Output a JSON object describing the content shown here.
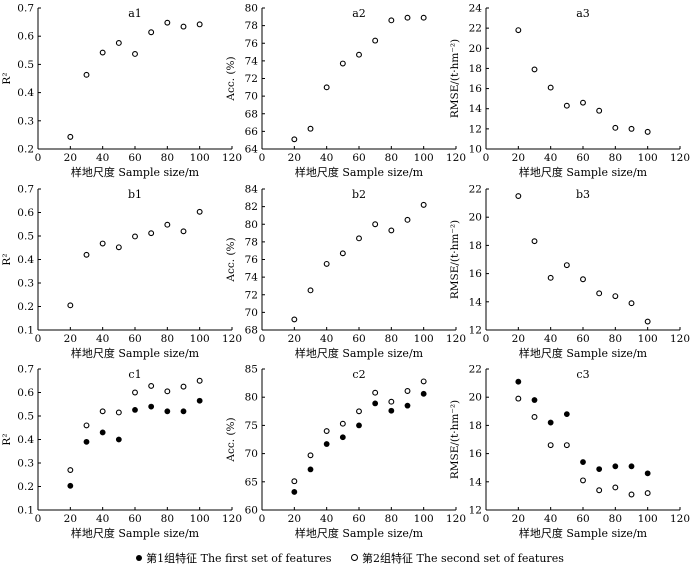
{
  "figure": {
    "legend": {
      "filled_label": "第1组特征 The first set of features",
      "open_label": "第2组特征 The second set of features"
    }
  },
  "chart_data": [
    {
      "id": "a1",
      "type": "scatter",
      "title": "a1",
      "xlabel": "样地尺度 Sample size/m",
      "ylabel": "R²",
      "xlim": [
        0,
        120
      ],
      "xticks": [
        0,
        20,
        40,
        60,
        80,
        100,
        120
      ],
      "ylim": [
        0.2,
        0.7
      ],
      "yticks": [
        0.2,
        0.3,
        0.4,
        0.5,
        0.6,
        0.7
      ],
      "x": [
        20,
        30,
        40,
        50,
        60,
        70,
        80,
        90,
        100
      ],
      "series": [
        {
          "name": "第2组特征 The second set of features",
          "marker": "open",
          "values": [
            0.243,
            0.463,
            0.542,
            0.576,
            0.537,
            0.614,
            0.648,
            0.634,
            0.642
          ]
        }
      ]
    },
    {
      "id": "a2",
      "type": "scatter",
      "title": "a2",
      "xlabel": "样地尺度 Sample size/m",
      "ylabel": "Acc. (%)",
      "xlim": [
        0,
        120
      ],
      "xticks": [
        0,
        20,
        40,
        60,
        80,
        100,
        120
      ],
      "ylim": [
        64,
        80
      ],
      "yticks": [
        64,
        66,
        68,
        70,
        72,
        74,
        76,
        78,
        80
      ],
      "x": [
        20,
        30,
        40,
        50,
        60,
        70,
        80,
        90,
        100
      ],
      "series": [
        {
          "name": "第2组特征 The second set of features",
          "marker": "open",
          "values": [
            65.1,
            66.3,
            71.0,
            73.7,
            74.7,
            76.3,
            78.6,
            78.9,
            78.9
          ]
        }
      ]
    },
    {
      "id": "a3",
      "type": "scatter",
      "title": "a3",
      "xlabel": "样地尺度 Sample size/m",
      "ylabel": "RMSE/(t·hm⁻²)",
      "xlim": [
        0,
        120
      ],
      "xticks": [
        0,
        20,
        40,
        60,
        80,
        100,
        120
      ],
      "ylim": [
        10,
        24
      ],
      "yticks": [
        10,
        12,
        14,
        16,
        18,
        20,
        22,
        24
      ],
      "x": [
        20,
        30,
        40,
        50,
        60,
        70,
        80,
        90,
        100
      ],
      "series": [
        {
          "name": "第2组特征 The second set of features",
          "marker": "open",
          "values": [
            21.8,
            17.9,
            16.1,
            14.3,
            14.6,
            13.8,
            12.1,
            12.0,
            11.7
          ]
        }
      ]
    },
    {
      "id": "b1",
      "type": "scatter",
      "title": "b1",
      "xlabel": "样地尺度 Sample size/m",
      "ylabel": "R²",
      "xlim": [
        0,
        120
      ],
      "xticks": [
        0,
        20,
        40,
        60,
        80,
        100,
        120
      ],
      "ylim": [
        0.1,
        0.7
      ],
      "yticks": [
        0.1,
        0.2,
        0.3,
        0.4,
        0.5,
        0.6,
        0.7
      ],
      "x": [
        20,
        30,
        40,
        50,
        60,
        70,
        80,
        90,
        100
      ],
      "series": [
        {
          "name": "第2组特征 The second set of features",
          "marker": "open",
          "values": [
            0.205,
            0.42,
            0.468,
            0.452,
            0.498,
            0.512,
            0.548,
            0.52,
            0.603
          ]
        }
      ]
    },
    {
      "id": "b2",
      "type": "scatter",
      "title": "b2",
      "xlabel": "样地尺度 Sample size/m",
      "ylabel": "Acc. (%)",
      "xlim": [
        0,
        120
      ],
      "xticks": [
        0,
        20,
        40,
        60,
        80,
        100,
        120
      ],
      "ylim": [
        68,
        84
      ],
      "yticks": [
        68,
        70,
        72,
        74,
        76,
        78,
        80,
        82,
        84
      ],
      "x": [
        20,
        30,
        40,
        50,
        60,
        70,
        80,
        90,
        100
      ],
      "series": [
        {
          "name": "第2组特征 The second set of features",
          "marker": "open",
          "values": [
            69.2,
            72.5,
            75.5,
            76.7,
            78.4,
            80.0,
            79.3,
            80.5,
            82.2
          ]
        }
      ]
    },
    {
      "id": "b3",
      "type": "scatter",
      "title": "b3",
      "xlabel": "样地尺度 Sample size/m",
      "ylabel": "RMSE/(t·hm⁻²)",
      "xlim": [
        0,
        120
      ],
      "xticks": [
        0,
        20,
        40,
        60,
        80,
        100,
        120
      ],
      "ylim": [
        12,
        22
      ],
      "yticks": [
        12,
        14,
        16,
        18,
        20,
        22
      ],
      "x": [
        20,
        30,
        40,
        50,
        60,
        70,
        80,
        90,
        100
      ],
      "series": [
        {
          "name": "第2组特征 The second set of features",
          "marker": "open",
          "values": [
            21.5,
            18.3,
            15.7,
            16.6,
            15.6,
            14.6,
            14.4,
            13.9,
            12.6
          ]
        }
      ]
    },
    {
      "id": "c1",
      "type": "scatter",
      "title": "c1",
      "xlabel": "样地尺度 Sample size/m",
      "ylabel": "R²",
      "xlim": [
        0,
        120
      ],
      "xticks": [
        0,
        20,
        40,
        60,
        80,
        100,
        120
      ],
      "ylim": [
        0.1,
        0.7
      ],
      "yticks": [
        0.1,
        0.2,
        0.3,
        0.4,
        0.5,
        0.6,
        0.7
      ],
      "x": [
        20,
        30,
        40,
        50,
        60,
        70,
        80,
        90,
        100
      ],
      "series": [
        {
          "name": "第1组特征 The first set of features",
          "marker": "filled",
          "values": [
            0.203,
            0.39,
            0.43,
            0.4,
            0.526,
            0.54,
            0.52,
            0.52,
            0.565
          ]
        },
        {
          "name": "第2组特征 The second set of features",
          "marker": "open",
          "values": [
            0.27,
            0.46,
            0.52,
            0.515,
            0.6,
            0.628,
            0.605,
            0.625,
            0.65
          ]
        }
      ]
    },
    {
      "id": "c2",
      "type": "scatter",
      "title": "c2",
      "xlabel": "样地尺度 Sample size/m",
      "ylabel": "Acc. (%)",
      "xlim": [
        0,
        120
      ],
      "xticks": [
        0,
        20,
        40,
        60,
        80,
        100,
        120
      ],
      "ylim": [
        60,
        85
      ],
      "yticks": [
        60,
        65,
        70,
        75,
        80,
        85
      ],
      "x": [
        20,
        30,
        40,
        50,
        60,
        70,
        80,
        90,
        100
      ],
      "series": [
        {
          "name": "第1组特征 The first set of features",
          "marker": "filled",
          "values": [
            63.2,
            67.2,
            71.7,
            72.9,
            75.0,
            78.9,
            77.6,
            78.5,
            80.6
          ]
        },
        {
          "name": "第2组特征 The second set of features",
          "marker": "open",
          "values": [
            65.1,
            69.7,
            74.0,
            75.3,
            77.5,
            80.8,
            79.2,
            81.1,
            82.8
          ]
        }
      ]
    },
    {
      "id": "c3",
      "type": "scatter",
      "title": "c3",
      "xlabel": "样地尺度 Sample size/m",
      "ylabel": "RMSE/(t·hm⁻²)",
      "xlim": [
        0,
        120
      ],
      "xticks": [
        0,
        20,
        40,
        60,
        80,
        100,
        120
      ],
      "ylim": [
        12,
        22
      ],
      "yticks": [
        12,
        14,
        16,
        18,
        20,
        22
      ],
      "x": [
        20,
        30,
        40,
        50,
        60,
        70,
        80,
        90,
        100
      ],
      "series": [
        {
          "name": "第1组特征 The first set of features",
          "marker": "filled",
          "values": [
            21.1,
            19.8,
            18.2,
            18.8,
            15.4,
            14.9,
            15.1,
            15.1,
            14.6
          ]
        },
        {
          "name": "第2组特征 The second set of features",
          "marker": "open",
          "values": [
            19.9,
            18.6,
            16.6,
            16.6,
            14.1,
            13.4,
            13.6,
            13.1,
            13.2
          ]
        }
      ]
    }
  ]
}
